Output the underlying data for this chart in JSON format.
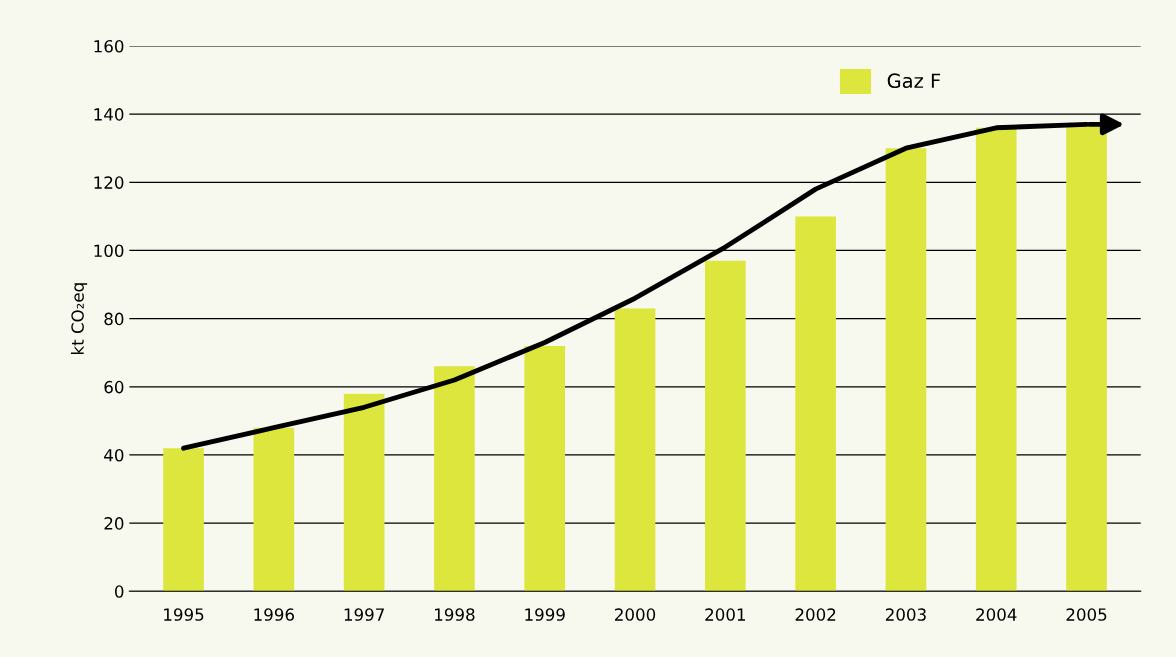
{
  "chart_data": {
    "type": "bar",
    "ylabel": "kt CO₂eq",
    "categories": [
      "1995",
      "1996",
      "1997",
      "1998",
      "1999",
      "2000",
      "2001",
      "2002",
      "2003",
      "2004",
      "2005"
    ],
    "series": [
      {
        "name": "Gaz F",
        "color": "#dde63c",
        "values": [
          42,
          48,
          58,
          66,
          72,
          83,
          97,
          110,
          130,
          136,
          137
        ]
      },
      {
        "type": "line",
        "color": "#000000",
        "values": [
          42,
          48,
          54,
          62,
          73,
          86,
          101,
          118,
          130,
          136,
          137
        ]
      }
    ],
    "ylim": [
      0,
      160
    ],
    "yticks": [
      0,
      20,
      40,
      60,
      80,
      100,
      120,
      140,
      160
    ],
    "grid": "y",
    "legend": "top right"
  }
}
